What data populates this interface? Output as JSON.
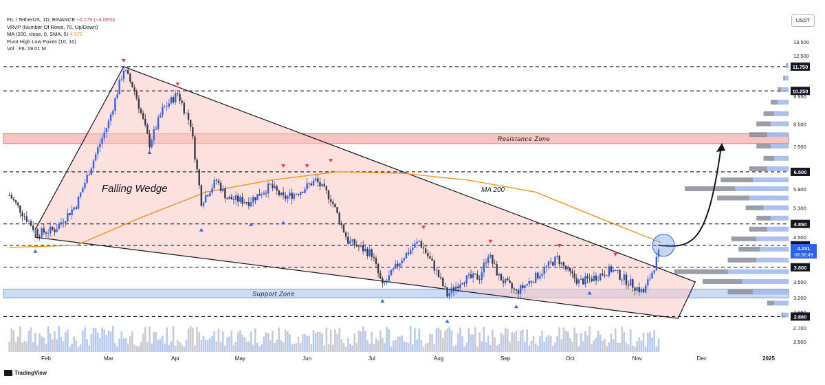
{
  "header": {
    "symbol_line": "FIL / TetherUS, 1D, BINANCE",
    "change": "−0.179 (−4.06%)",
    "vrvp_line": "VRVP (Number Of Rows, 70, Up/Down)",
    "ma_line": "MA (200, close, 0, SMA, 5)",
    "ma_value": "4.372",
    "pivot_line": "Pivot High Low Points (10, 10)",
    "vol_line": "Vol · FIL",
    "vol_value": "19.01 M"
  },
  "currency_button": "USDT",
  "logo_text": "TradingView",
  "colors": {
    "up": "#2962ff",
    "down": "#363a45",
    "wedge_fill": "#f9c9c5",
    "resistance": "#f8b8b8",
    "support": "#b9cff3",
    "ma": "#f7931a",
    "pivot_high": "#f23645",
    "pivot_low": "#2962ff"
  },
  "chart_data": {
    "type": "candlestick",
    "title": "FIL / TetherUS, 1D, BINANCE",
    "x_ticks": [
      "Feb",
      "Mar",
      "Apr",
      "May",
      "Jun",
      "Jul",
      "Aug",
      "Sep",
      "Oct",
      "Nov",
      "Dec",
      "2025"
    ],
    "y_ticks": [
      "13.500",
      "12.500",
      "9.950",
      "8.500",
      "7.500",
      "5.900",
      "5.300",
      "4.500",
      "3.500",
      "3.200",
      "2.950",
      "2.700",
      "2.500"
    ],
    "y_range": [
      2.45,
      14.2
    ],
    "log_scale": true,
    "price_levels": [
      {
        "label": "11.750",
        "value": 11.75
      },
      {
        "label": "10.250",
        "value": 10.25
      },
      {
        "label": "6.500",
        "value": 6.5
      },
      {
        "label": "4.850",
        "value": 4.85
      },
      {
        "label": "4.300",
        "value": 4.3
      },
      {
        "label": "3.800",
        "value": 3.8
      },
      {
        "label": "2.880",
        "value": 2.88
      }
    ],
    "current_price": "4.231",
    "countdown": "08:36:49",
    "zones": [
      {
        "label": "Resistance Zone",
        "low": 7.62,
        "high": 8.06
      },
      {
        "label": "Support Zone",
        "low": 3.2,
        "high": 3.36
      }
    ],
    "annotations": [
      "Falling Wedge",
      "MA 200"
    ],
    "price_path": [
      {
        "date": "2024-01-15",
        "price": 5.7
      },
      {
        "date": "2024-01-28",
        "price": 4.6
      },
      {
        "date": "2024-02-05",
        "price": 4.7
      },
      {
        "date": "2024-02-15",
        "price": 5.4
      },
      {
        "date": "2024-02-25",
        "price": 7.4
      },
      {
        "date": "2024-03-01",
        "price": 8.6
      },
      {
        "date": "2024-03-08",
        "price": 11.6
      },
      {
        "date": "2024-03-13",
        "price": 10.3
      },
      {
        "date": "2024-03-20",
        "price": 7.6
      },
      {
        "date": "2024-03-26",
        "price": 9.2
      },
      {
        "date": "2024-04-02",
        "price": 10.1
      },
      {
        "date": "2024-04-08",
        "price": 8.5
      },
      {
        "date": "2024-04-13",
        "price": 5.5
      },
      {
        "date": "2024-04-20",
        "price": 6.2
      },
      {
        "date": "2024-04-25",
        "price": 5.6
      },
      {
        "date": "2024-05-05",
        "price": 5.5
      },
      {
        "date": "2024-05-15",
        "price": 6.0
      },
      {
        "date": "2024-05-21",
        "price": 5.6
      },
      {
        "date": "2024-05-28",
        "price": 5.8
      },
      {
        "date": "2024-06-05",
        "price": 6.2
      },
      {
        "date": "2024-06-12",
        "price": 5.6
      },
      {
        "date": "2024-06-20",
        "price": 4.4
      },
      {
        "date": "2024-07-01",
        "price": 4.1
      },
      {
        "date": "2024-07-06",
        "price": 3.4
      },
      {
        "date": "2024-07-15",
        "price": 4.0
      },
      {
        "date": "2024-07-23",
        "price": 4.4
      },
      {
        "date": "2024-07-30",
        "price": 3.8
      },
      {
        "date": "2024-08-05",
        "price": 3.25
      },
      {
        "date": "2024-08-12",
        "price": 3.55
      },
      {
        "date": "2024-08-20",
        "price": 3.6
      },
      {
        "date": "2024-08-24",
        "price": 4.1
      },
      {
        "date": "2024-08-29",
        "price": 3.6
      },
      {
        "date": "2024-09-06",
        "price": 3.3
      },
      {
        "date": "2024-09-15",
        "price": 3.6
      },
      {
        "date": "2024-09-25",
        "price": 4.0
      },
      {
        "date": "2024-09-30",
        "price": 3.7
      },
      {
        "date": "2024-10-05",
        "price": 3.5
      },
      {
        "date": "2024-10-10",
        "price": 3.55
      },
      {
        "date": "2024-10-20",
        "price": 3.75
      },
      {
        "date": "2024-10-28",
        "price": 3.5
      },
      {
        "date": "2024-11-04",
        "price": 3.3
      },
      {
        "date": "2024-11-08",
        "price": 3.7
      },
      {
        "date": "2024-11-12",
        "price": 4.23
      }
    ],
    "ma200": [
      {
        "date": "2024-01-15",
        "price": 4.25
      },
      {
        "date": "2024-02-15",
        "price": 4.3
      },
      {
        "date": "2024-03-15",
        "price": 5.0
      },
      {
        "date": "2024-04-15",
        "price": 5.8
      },
      {
        "date": "2024-05-15",
        "price": 6.2
      },
      {
        "date": "2024-06-15",
        "price": 6.5
      },
      {
        "date": "2024-07-15",
        "price": 6.45
      },
      {
        "date": "2024-08-15",
        "price": 6.2
      },
      {
        "date": "2024-09-15",
        "price": 5.8
      },
      {
        "date": "2024-10-15",
        "price": 5.0
      },
      {
        "date": "2024-11-12",
        "price": 4.37
      }
    ],
    "wedge_upper": [
      {
        "date": "2024-01-27",
        "price": 4.7
      },
      {
        "date": "2024-03-08",
        "price": 11.75
      },
      {
        "date": "2024-11-28",
        "price": 3.5
      }
    ],
    "wedge_lower": [
      {
        "date": "2024-01-27",
        "price": 4.5
      },
      {
        "date": "2024-11-20",
        "price": 2.85
      }
    ],
    "projection": [
      {
        "date": "2024-11-14",
        "price": 4.3
      },
      {
        "date": "2024-12-10",
        "price": 7.5
      }
    ],
    "pivot_highs": [
      {
        "date": "2024-03-08",
        "price": 11.75
      },
      {
        "date": "2024-04-02",
        "price": 10.3
      },
      {
        "date": "2024-05-21",
        "price": 6.5
      },
      {
        "date": "2024-06-01",
        "price": 6.5
      },
      {
        "date": "2024-06-12",
        "price": 6.7
      },
      {
        "date": "2024-07-25",
        "price": 4.6
      },
      {
        "date": "2024-08-25",
        "price": 4.25
      },
      {
        "date": "2024-09-26",
        "price": 4.15
      },
      {
        "date": "2024-10-22",
        "price": 3.95
      }
    ],
    "pivot_lows": [
      {
        "date": "2024-01-27",
        "price": 4.3
      },
      {
        "date": "2024-03-20",
        "price": 7.5
      },
      {
        "date": "2024-04-13",
        "price": 4.85
      },
      {
        "date": "2024-05-06",
        "price": 5.0
      },
      {
        "date": "2024-05-21",
        "price": 5.05
      },
      {
        "date": "2024-07-06",
        "price": 3.25
      },
      {
        "date": "2024-08-05",
        "price": 2.9
      },
      {
        "date": "2024-09-06",
        "price": 3.15
      },
      {
        "date": "2024-10-10",
        "price": 3.4
      }
    ],
    "volume_profile": [
      {
        "price": 11.8,
        "up": 1,
        "down": 0.5
      },
      {
        "price": 11.0,
        "up": 2,
        "down": 1
      },
      {
        "price": 10.3,
        "up": 4,
        "down": 2
      },
      {
        "price": 9.6,
        "up": 6,
        "down": 4
      },
      {
        "price": 9.0,
        "up": 8,
        "down": 6
      },
      {
        "price": 8.5,
        "up": 10,
        "down": 8
      },
      {
        "price": 8.0,
        "up": 12,
        "down": 10
      },
      {
        "price": 7.5,
        "up": 10,
        "down": 8
      },
      {
        "price": 7.0,
        "up": 8,
        "down": 6
      },
      {
        "price": 6.6,
        "up": 12,
        "down": 10
      },
      {
        "price": 6.2,
        "up": 20,
        "down": 18
      },
      {
        "price": 5.9,
        "up": 30,
        "down": 28
      },
      {
        "price": 5.6,
        "up": 22,
        "down": 18
      },
      {
        "price": 5.3,
        "up": 14,
        "down": 10
      },
      {
        "price": 5.0,
        "up": 10,
        "down": 8
      },
      {
        "price": 4.7,
        "up": 12,
        "down": 10
      },
      {
        "price": 4.45,
        "up": 18,
        "down": 14
      },
      {
        "price": 4.2,
        "up": 16,
        "down": 12
      },
      {
        "price": 3.95,
        "up": 18,
        "down": 16
      },
      {
        "price": 3.7,
        "up": 34,
        "down": 30
      },
      {
        "price": 3.5,
        "up": 26,
        "down": 22
      },
      {
        "price": 3.3,
        "up": 20,
        "down": 14
      },
      {
        "price": 3.1,
        "up": 8,
        "down": 4
      },
      {
        "price": 2.9,
        "up": 3,
        "down": 1
      }
    ]
  }
}
